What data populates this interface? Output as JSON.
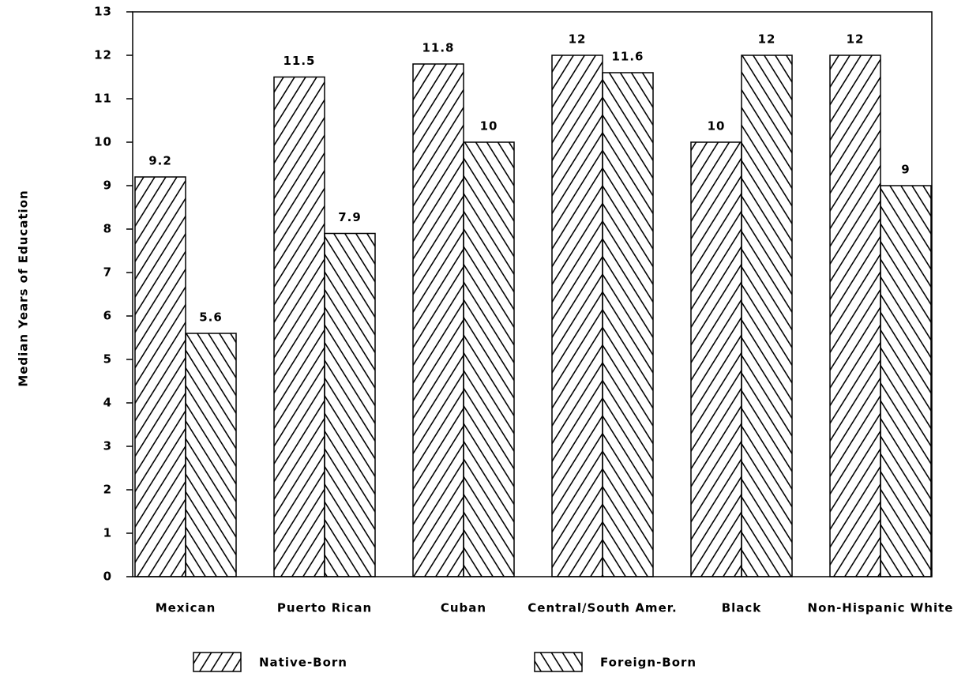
{
  "chart_data": {
    "type": "bar",
    "y_label": "Median Years of Education",
    "categories": [
      "Mexican",
      "Puerto Rican",
      "Cuban",
      "Central/South Amer.",
      "Black",
      "Non-Hispanic White"
    ],
    "series": [
      {
        "name": "Native-Born",
        "color": "#000000",
        "hatch": "/",
        "values": [
          9.2,
          11.5,
          11.8,
          12,
          10,
          12
        ]
      },
      {
        "name": "Foreign-Born",
        "color": "#000000",
        "hatch": "\\",
        "values": [
          5.6,
          7.9,
          10,
          11.6,
          12,
          9
        ]
      }
    ],
    "ylim": [
      0,
      13
    ],
    "yticks": [
      0,
      1,
      2,
      3,
      4,
      5,
      6,
      7,
      8,
      9,
      10,
      11,
      12,
      13
    ]
  }
}
